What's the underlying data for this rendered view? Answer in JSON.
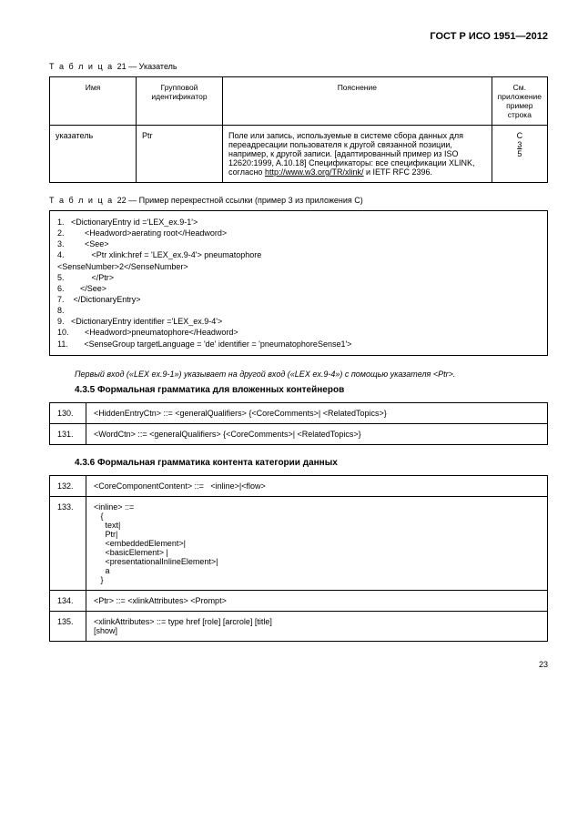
{
  "doc_header": "ГОСТ Р ИСО 1951—2012",
  "table21": {
    "caption_label": "Т а б л и ц а",
    "caption_num": "21 — Указатель",
    "headers": {
      "name": "Имя",
      "gid": "Групповой идентификатор",
      "desc": "Пояснение",
      "app": "См. приложение пример строка"
    },
    "row": {
      "name": "указатель",
      "gid": "Ptr",
      "desc_line1": "Поле или запись, используемые в системе сбора данных для переадресации пользователя к другой связанной позиции, например, к другой записи. [адаптированный пример из ISO 12620:1999, A.10.18] Спецификаторы: все спецификации XLINK, согласно ",
      "desc_link": "http://www.w3.org/TR/xlink/",
      "desc_after": " и IETF RFC 2396.",
      "app_c": "C",
      "app_3": "3",
      "app_5": "5"
    }
  },
  "table22": {
    "caption_label": "Т а б л и ц а",
    "caption_num": "22 — Пример перекрестной ссылки (пример 3 из приложения C)",
    "lines": [
      "1.   <DictionaryEntry id ='LEX_ex.9-1'>",
      "2.         <Headword>aerating root</Headword>",
      "3.         <See>",
      "4.            <Ptr xlink:href = 'LEX_ex.9-4'> pneumatophore",
      "<SenseNumber>2</SenseNumber>",
      "5.            </Ptr>",
      "6.       </See>",
      "7.    </DictionaryEntry>",
      "8.",
      "9.   <DictionaryEntry identifier ='LEX_ex.9-4'>",
      "10.       <Headword>pneumatophore</Headword>",
      "11.       <SenseGroup targetLanguage = 'de' identifier = 'pneumatophoreSense1'>"
    ]
  },
  "para_italic": "Первый вход («LEX ex.9-1») указывает на другой вход («LEX ex.9-4») с помощью указателя <Ptr>.",
  "section_435": "4.3.5 Формальная грамматика для вложенных контейнеров",
  "grammar1": [
    {
      "num": "130.",
      "body": "<HiddenEntryCtn> ::= <generalQualifiers> {<CoreComments>| <RelatedTopics>}"
    },
    {
      "num": "131.",
      "body": "<WordCtn> ::= <generalQualifiers> {<CoreComments>| <RelatedTopics>}"
    }
  ],
  "section_436": "4.3.6 Формальная грамматика контента категории данных",
  "grammar2": [
    {
      "num": "132.",
      "body": "<CoreComponentContent> ::=   <inline>|<flow>"
    },
    {
      "num": "133.",
      "body": "<inline> ::=\n   {\n     text|\n     Ptr|\n     <embeddedElement>|\n     <basicElement> |\n     <presentationalInlineElement>|\n     a\n   }"
    },
    {
      "num": "134.",
      "body": "<Ptr> ::= <xlinkAttributes> <Prompt>"
    },
    {
      "num": "135.",
      "body": "<xlinkAttributes> ::= type href [role] [arcrole] [title]\n[show]"
    }
  ],
  "page_number": "23"
}
